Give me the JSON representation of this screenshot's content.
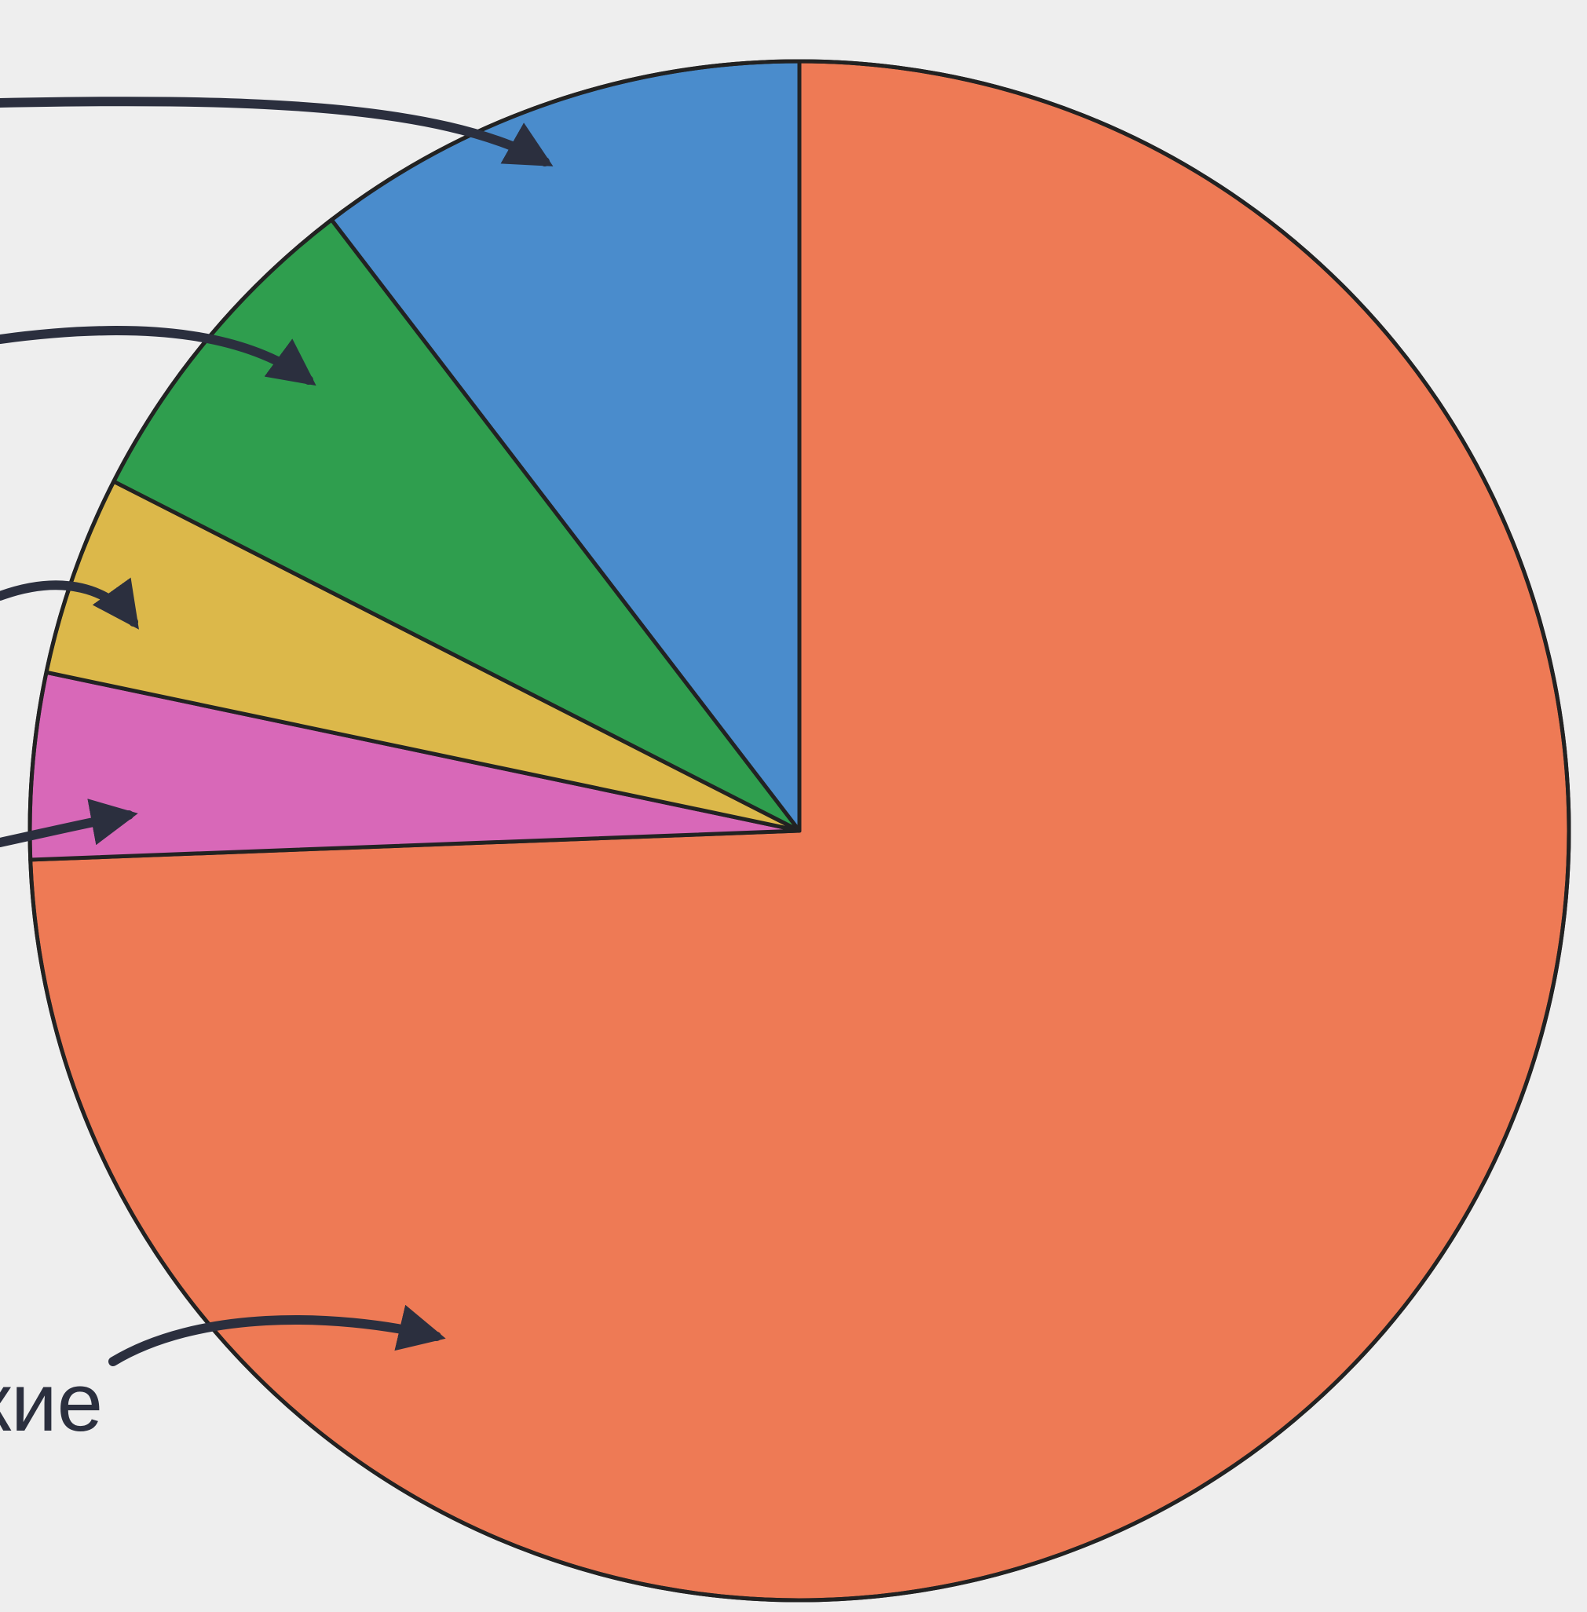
{
  "chart_data": {
    "type": "pie",
    "categories": [
      "кие",
      null,
      null,
      null,
      null
    ],
    "values": [
      74.4,
      3.9,
      4.2,
      7.1,
      10.4
    ],
    "colors": [
      "#ee7a55",
      "#d868b8",
      "#dcb84a",
      "#2f9e4e",
      "#4a8ccc"
    ]
  }
}
